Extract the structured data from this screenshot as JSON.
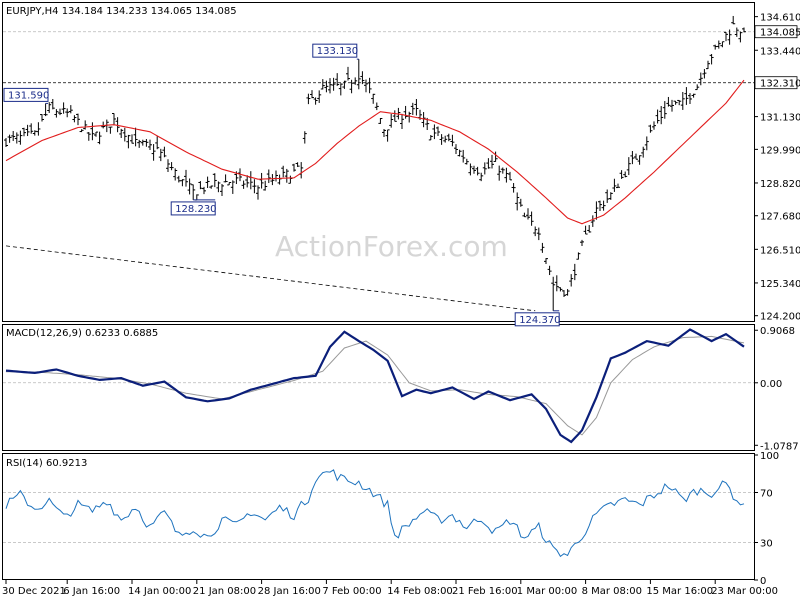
{
  "chart_data": [
    {
      "type": "candlestick",
      "title": "EURJPY,H4  134.184 134.233 134.065 134.085",
      "watermark": "ActionForex.com",
      "ylim": [
        124.05,
        135.05
      ],
      "y_ticks": [
        "134.610",
        "133.440",
        "131.130",
        "129.990",
        "128.820",
        "127.680",
        "126.510",
        "125.340",
        "124.200"
      ],
      "y_tick_values": [
        134.61,
        133.44,
        131.13,
        129.99,
        128.82,
        127.68,
        126.51,
        125.34,
        124.2
      ],
      "price_labels": [
        {
          "text": "134.085",
          "value": 134.085,
          "style": "highlight"
        },
        {
          "text": "132.310",
          "value": 132.31,
          "style": "level"
        }
      ],
      "annotations": [
        {
          "text": "131.590",
          "value": 131.59,
          "bar": 11,
          "anchor": "high"
        },
        {
          "text": "133.130",
          "value": 133.13,
          "bar": 98,
          "anchor": "high"
        },
        {
          "text": "128.230",
          "value": 128.23,
          "bar": 52,
          "anchor": "low"
        },
        {
          "text": "124.370",
          "value": 124.37,
          "bar": 152,
          "anchor": "low"
        }
      ],
      "level_line": 132.31,
      "trend_line": {
        "from": {
          "bar": 0,
          "value": 126.63
        },
        "to": {
          "bar": 147,
          "value": 124.37
        }
      },
      "moving_average_color": "#e11d1d",
      "xlabels": [
        "30 Dec 2021",
        "6 Jan 16:00",
        "14 Jan 00:00",
        "21 Jan 08:00",
        "28 Jan 16:00",
        "7 Feb 00:00",
        "14 Feb 08:00",
        "21 Feb 16:00",
        "1 Mar 00:00",
        "8 Mar 08:00",
        "15 Mar 16:00",
        "23 Mar 00:00"
      ],
      "xlabel_bars": [
        0,
        17,
        35,
        53,
        71,
        89,
        107,
        125,
        143,
        161,
        179,
        197
      ],
      "bar_count": 206,
      "close_path": [
        {
          "bar": 0,
          "value": 130.3
        },
        {
          "bar": 8,
          "value": 130.5
        },
        {
          "bar": 12,
          "value": 131.4
        },
        {
          "bar": 18,
          "value": 131.2
        },
        {
          "bar": 24,
          "value": 130.4
        },
        {
          "bar": 30,
          "value": 131.0
        },
        {
          "bar": 36,
          "value": 130.2
        },
        {
          "bar": 42,
          "value": 130.0
        },
        {
          "bar": 48,
          "value": 129.0
        },
        {
          "bar": 52,
          "value": 128.5
        },
        {
          "bar": 58,
          "value": 128.8
        },
        {
          "bar": 64,
          "value": 128.9
        },
        {
          "bar": 70,
          "value": 128.7
        },
        {
          "bar": 78,
          "value": 129.1
        },
        {
          "bar": 82,
          "value": 129.3
        },
        {
          "bar": 84,
          "value": 131.6
        },
        {
          "bar": 88,
          "value": 132.1
        },
        {
          "bar": 94,
          "value": 132.2
        },
        {
          "bar": 98,
          "value": 132.6
        },
        {
          "bar": 102,
          "value": 131.8
        },
        {
          "bar": 105,
          "value": 130.7
        },
        {
          "bar": 110,
          "value": 131.2
        },
        {
          "bar": 114,
          "value": 131.3
        },
        {
          "bar": 118,
          "value": 130.6
        },
        {
          "bar": 124,
          "value": 130.2
        },
        {
          "bar": 128,
          "value": 129.6
        },
        {
          "bar": 132,
          "value": 129.2
        },
        {
          "bar": 136,
          "value": 129.5
        },
        {
          "bar": 140,
          "value": 128.9
        },
        {
          "bar": 144,
          "value": 127.6
        },
        {
          "bar": 148,
          "value": 127.2
        },
        {
          "bar": 152,
          "value": 125.3
        },
        {
          "bar": 156,
          "value": 125.0
        },
        {
          "bar": 160,
          "value": 126.6
        },
        {
          "bar": 164,
          "value": 127.9
        },
        {
          "bar": 168,
          "value": 128.4
        },
        {
          "bar": 172,
          "value": 129.2
        },
        {
          "bar": 176,
          "value": 129.9
        },
        {
          "bar": 180,
          "value": 130.8
        },
        {
          "bar": 184,
          "value": 131.5
        },
        {
          "bar": 188,
          "value": 131.6
        },
        {
          "bar": 192,
          "value": 132.2
        },
        {
          "bar": 195,
          "value": 133.1
        },
        {
          "bar": 198,
          "value": 133.6
        },
        {
          "bar": 202,
          "value": 134.3
        },
        {
          "bar": 205,
          "value": 134.085
        }
      ],
      "ma_path": [
        {
          "bar": 0,
          "value": 129.6
        },
        {
          "bar": 10,
          "value": 130.3
        },
        {
          "bar": 20,
          "value": 130.75
        },
        {
          "bar": 30,
          "value": 130.85
        },
        {
          "bar": 40,
          "value": 130.6
        },
        {
          "bar": 50,
          "value": 129.9
        },
        {
          "bar": 60,
          "value": 129.3
        },
        {
          "bar": 70,
          "value": 128.95
        },
        {
          "bar": 80,
          "value": 129.0
        },
        {
          "bar": 86,
          "value": 129.5
        },
        {
          "bar": 92,
          "value": 130.2
        },
        {
          "bar": 98,
          "value": 130.8
        },
        {
          "bar": 104,
          "value": 131.3
        },
        {
          "bar": 110,
          "value": 131.2
        },
        {
          "bar": 118,
          "value": 131.0
        },
        {
          "bar": 126,
          "value": 130.6
        },
        {
          "bar": 134,
          "value": 130.0
        },
        {
          "bar": 142,
          "value": 129.2
        },
        {
          "bar": 150,
          "value": 128.3
        },
        {
          "bar": 156,
          "value": 127.6
        },
        {
          "bar": 160,
          "value": 127.4
        },
        {
          "bar": 166,
          "value": 127.7
        },
        {
          "bar": 172,
          "value": 128.3
        },
        {
          "bar": 180,
          "value": 129.2
        },
        {
          "bar": 190,
          "value": 130.4
        },
        {
          "bar": 200,
          "value": 131.6
        },
        {
          "bar": 205,
          "value": 132.4
        }
      ]
    },
    {
      "type": "line",
      "title": "MACD(12,26,9) 0.6233 0.6885",
      "ylim": [
        -1.16,
        0.98
      ],
      "y_ticks": [
        "0.9068",
        "0.00",
        "-1.0787"
      ],
      "y_tick_values": [
        0.9068,
        0.0,
        -1.0787
      ],
      "zero_line": 0.0,
      "series": [
        {
          "color": "#0b1f7a",
          "values": [
            {
              "bar": 0,
              "value": 0.21
            },
            {
              "bar": 8,
              "value": 0.17
            },
            {
              "bar": 14,
              "value": 0.23
            },
            {
              "bar": 20,
              "value": 0.12
            },
            {
              "bar": 26,
              "value": 0.05
            },
            {
              "bar": 32,
              "value": 0.08
            },
            {
              "bar": 38,
              "value": -0.05
            },
            {
              "bar": 44,
              "value": 0.02
            },
            {
              "bar": 50,
              "value": -0.25
            },
            {
              "bar": 56,
              "value": -0.32
            },
            {
              "bar": 62,
              "value": -0.27
            },
            {
              "bar": 68,
              "value": -0.12
            },
            {
              "bar": 74,
              "value": -0.02
            },
            {
              "bar": 80,
              "value": 0.08
            },
            {
              "bar": 86,
              "value": 0.12
            },
            {
              "bar": 90,
              "value": 0.62
            },
            {
              "bar": 94,
              "value": 0.88
            },
            {
              "bar": 98,
              "value": 0.72
            },
            {
              "bar": 102,
              "value": 0.57
            },
            {
              "bar": 106,
              "value": 0.38
            },
            {
              "bar": 110,
              "value": -0.23
            },
            {
              "bar": 114,
              "value": -0.12
            },
            {
              "bar": 118,
              "value": -0.18
            },
            {
              "bar": 124,
              "value": -0.08
            },
            {
              "bar": 130,
              "value": -0.28
            },
            {
              "bar": 134,
              "value": -0.15
            },
            {
              "bar": 140,
              "value": -0.3
            },
            {
              "bar": 146,
              "value": -0.2
            },
            {
              "bar": 150,
              "value": -0.45
            },
            {
              "bar": 154,
              "value": -0.9
            },
            {
              "bar": 157,
              "value": -1.02
            },
            {
              "bar": 160,
              "value": -0.82
            },
            {
              "bar": 164,
              "value": -0.25
            },
            {
              "bar": 168,
              "value": 0.42
            },
            {
              "bar": 172,
              "value": 0.52
            },
            {
              "bar": 178,
              "value": 0.72
            },
            {
              "bar": 184,
              "value": 0.64
            },
            {
              "bar": 190,
              "value": 0.92
            },
            {
              "bar": 196,
              "value": 0.72
            },
            {
              "bar": 200,
              "value": 0.84
            },
            {
              "bar": 205,
              "value": 0.6233
            }
          ]
        },
        {
          "color": "#999999",
          "values": [
            {
              "bar": 0,
              "value": 0.19
            },
            {
              "bar": 10,
              "value": 0.18
            },
            {
              "bar": 20,
              "value": 0.14
            },
            {
              "bar": 30,
              "value": 0.08
            },
            {
              "bar": 40,
              "value": -0.02
            },
            {
              "bar": 50,
              "value": -0.18
            },
            {
              "bar": 60,
              "value": -0.28
            },
            {
              "bar": 70,
              "value": -0.12
            },
            {
              "bar": 80,
              "value": 0.04
            },
            {
              "bar": 88,
              "value": 0.2
            },
            {
              "bar": 94,
              "value": 0.6
            },
            {
              "bar": 100,
              "value": 0.72
            },
            {
              "bar": 106,
              "value": 0.48
            },
            {
              "bar": 112,
              "value": 0.0
            },
            {
              "bar": 118,
              "value": -0.14
            },
            {
              "bar": 126,
              "value": -0.12
            },
            {
              "bar": 134,
              "value": -0.2
            },
            {
              "bar": 142,
              "value": -0.24
            },
            {
              "bar": 150,
              "value": -0.36
            },
            {
              "bar": 156,
              "value": -0.74
            },
            {
              "bar": 160,
              "value": -0.9
            },
            {
              "bar": 164,
              "value": -0.6
            },
            {
              "bar": 168,
              "value": 0.0
            },
            {
              "bar": 174,
              "value": 0.4
            },
            {
              "bar": 180,
              "value": 0.62
            },
            {
              "bar": 188,
              "value": 0.78
            },
            {
              "bar": 196,
              "value": 0.8
            },
            {
              "bar": 205,
              "value": 0.6885
            }
          ]
        }
      ]
    },
    {
      "type": "line",
      "title": "RSI(14) 60.9213",
      "ylim": [
        0,
        100
      ],
      "y_ticks": [
        "100",
        "70",
        "30",
        "0"
      ],
      "y_tick_values": [
        100,
        70,
        30,
        0
      ],
      "levels": [
        70,
        30
      ],
      "series": [
        {
          "color": "#1e73be",
          "values": [
            {
              "bar": 0,
              "value": 60
            },
            {
              "bar": 4,
              "value": 68
            },
            {
              "bar": 8,
              "value": 57
            },
            {
              "bar": 12,
              "value": 63
            },
            {
              "bar": 16,
              "value": 50
            },
            {
              "bar": 20,
              "value": 60
            },
            {
              "bar": 24,
              "value": 55
            },
            {
              "bar": 28,
              "value": 64
            },
            {
              "bar": 32,
              "value": 48
            },
            {
              "bar": 36,
              "value": 59
            },
            {
              "bar": 40,
              "value": 42
            },
            {
              "bar": 44,
              "value": 54
            },
            {
              "bar": 48,
              "value": 35
            },
            {
              "bar": 52,
              "value": 42
            },
            {
              "bar": 56,
              "value": 34
            },
            {
              "bar": 60,
              "value": 48
            },
            {
              "bar": 64,
              "value": 43
            },
            {
              "bar": 68,
              "value": 55
            },
            {
              "bar": 72,
              "value": 48
            },
            {
              "bar": 76,
              "value": 58
            },
            {
              "bar": 80,
              "value": 52
            },
            {
              "bar": 84,
              "value": 66
            },
            {
              "bar": 86,
              "value": 82
            },
            {
              "bar": 90,
              "value": 87
            },
            {
              "bar": 94,
              "value": 80
            },
            {
              "bar": 98,
              "value": 78
            },
            {
              "bar": 102,
              "value": 70
            },
            {
              "bar": 106,
              "value": 60
            },
            {
              "bar": 108,
              "value": 35
            },
            {
              "bar": 112,
              "value": 45
            },
            {
              "bar": 116,
              "value": 55
            },
            {
              "bar": 120,
              "value": 48
            },
            {
              "bar": 124,
              "value": 52
            },
            {
              "bar": 128,
              "value": 42
            },
            {
              "bar": 132,
              "value": 50
            },
            {
              "bar": 136,
              "value": 38
            },
            {
              "bar": 140,
              "value": 48
            },
            {
              "bar": 144,
              "value": 34
            },
            {
              "bar": 148,
              "value": 42
            },
            {
              "bar": 152,
              "value": 24
            },
            {
              "bar": 156,
              "value": 20
            },
            {
              "bar": 160,
              "value": 36
            },
            {
              "bar": 164,
              "value": 52
            },
            {
              "bar": 168,
              "value": 60
            },
            {
              "bar": 172,
              "value": 64
            },
            {
              "bar": 176,
              "value": 60
            },
            {
              "bar": 180,
              "value": 68
            },
            {
              "bar": 184,
              "value": 76
            },
            {
              "bar": 188,
              "value": 64
            },
            {
              "bar": 192,
              "value": 72
            },
            {
              "bar": 196,
              "value": 70
            },
            {
              "bar": 200,
              "value": 77
            },
            {
              "bar": 203,
              "value": 64
            },
            {
              "bar": 205,
              "value": 60.9213
            }
          ]
        }
      ]
    }
  ]
}
